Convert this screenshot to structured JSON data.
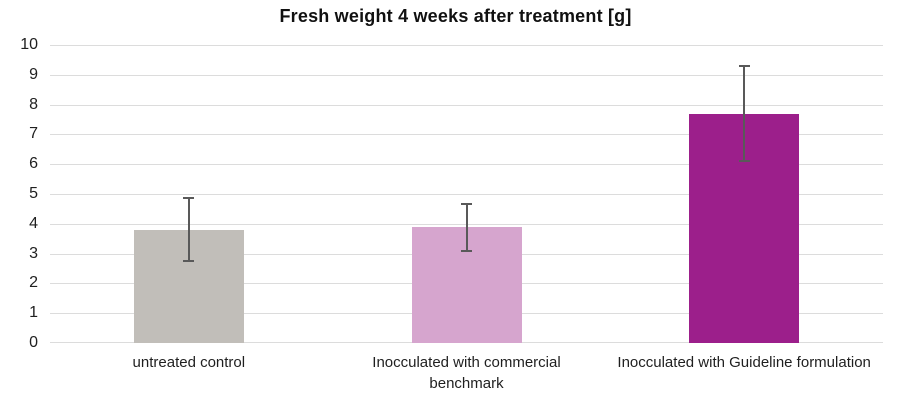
{
  "chart_data": {
    "type": "bar",
    "title": "Fresh weight 4 weeks after treatment [g]",
    "categories": [
      "untreated control",
      "Inocculated with commercial benchmark",
      "Inocculated with Guideline formulation"
    ],
    "values": [
      3.8,
      3.9,
      7.7
    ],
    "error_low": [
      2.75,
      3.1,
      6.1
    ],
    "error_high": [
      4.85,
      4.65,
      9.3
    ],
    "bar_colors": [
      "#c1beb9",
      "#d6a5ce",
      "#9c1f8b"
    ],
    "xlabel": "",
    "ylabel": "",
    "ylim": [
      0,
      10
    ],
    "ytick_step": 1,
    "ytick_labels": [
      "0",
      "1",
      "2",
      "3",
      "4",
      "5",
      "6",
      "7",
      "8",
      "9",
      "10"
    ],
    "grid": true,
    "legend": "none",
    "gridline_color": "#dcdcdc",
    "error_bar_color": "#595959",
    "text_color": "#1f1f1f",
    "background_color": "#ffffff"
  }
}
